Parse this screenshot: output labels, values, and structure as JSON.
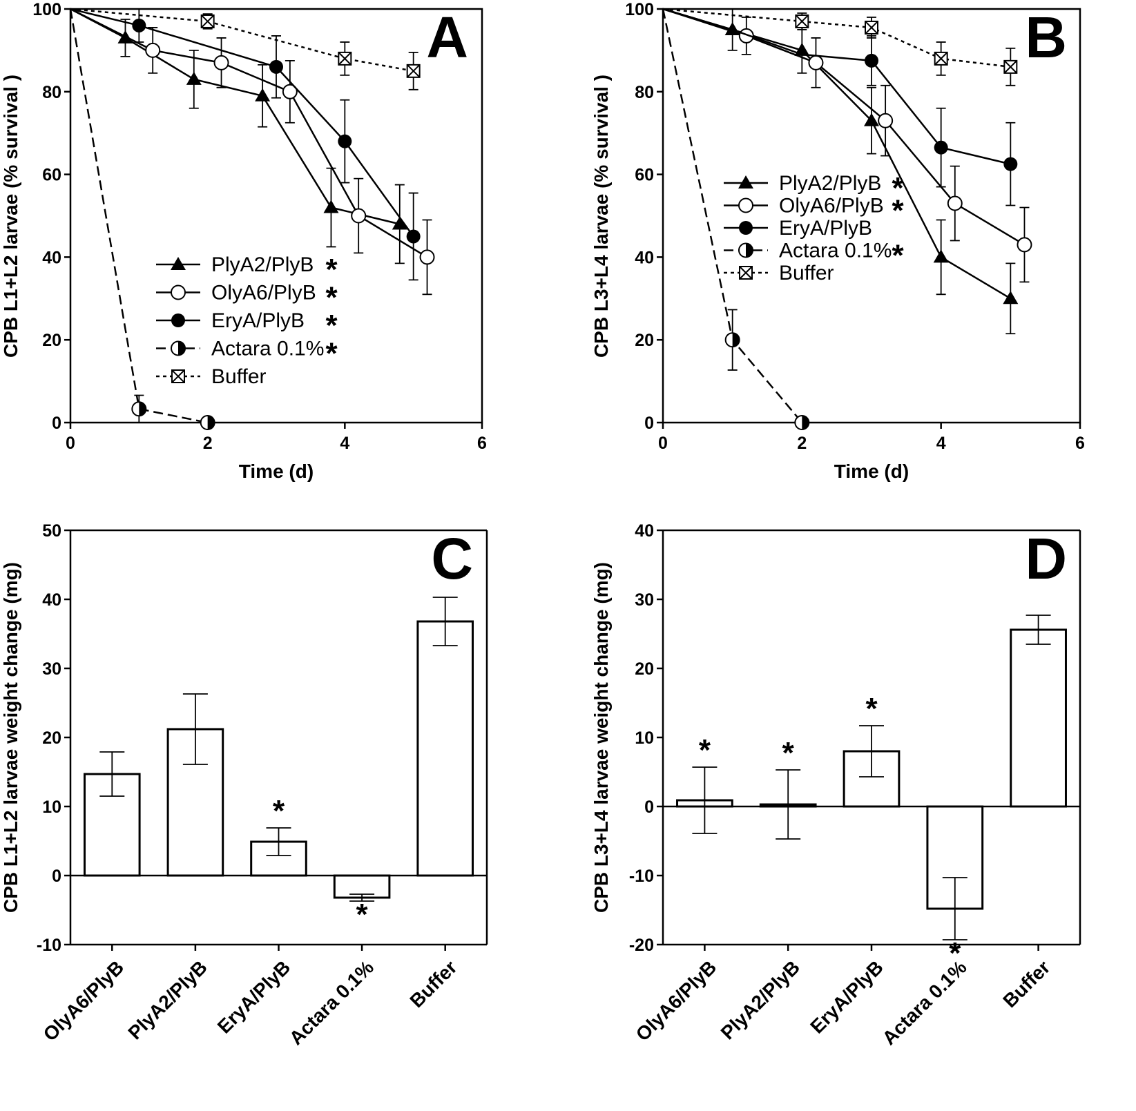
{
  "colors": {
    "ink": "#000000",
    "paper": "#ffffff"
  },
  "chart_data": [
    {
      "id": "A",
      "type": "line",
      "letter": "A",
      "xlabel": "Time (d)",
      "ylabel": "CPB L1+L2 larvae (% survival )",
      "xlim": [
        0,
        6
      ],
      "ylim": [
        0,
        100
      ],
      "xticks": [
        "0",
        "2",
        "4",
        "6"
      ],
      "yticks": [
        "0",
        "20",
        "40",
        "60",
        "80",
        "100"
      ],
      "legend_position": "center-left",
      "series": [
        {
          "name": "PlyA2/PlyB",
          "star": "*",
          "marker": "triangle",
          "dash": "solid",
          "points": [
            {
              "x": 0,
              "y": 100
            },
            {
              "x": 0.8,
              "y": 93
            },
            {
              "x": 1.8,
              "y": 83
            },
            {
              "x": 2.8,
              "y": 79
            },
            {
              "x": 3.8,
              "y": 52
            },
            {
              "x": 4.8,
              "y": 48
            }
          ],
          "err": [
            0,
            4.5,
            7,
            7.5,
            9.5,
            9.5
          ]
        },
        {
          "name": "OlyA6/PlyB",
          "star": "*",
          "marker": "circle-open",
          "dash": "solid",
          "points": [
            {
              "x": 0,
              "y": 100
            },
            {
              "x": 1.2,
              "y": 90
            },
            {
              "x": 2.2,
              "y": 87
            },
            {
              "x": 3.2,
              "y": 80
            },
            {
              "x": 4.2,
              "y": 50
            },
            {
              "x": 5.2,
              "y": 40
            }
          ],
          "err": [
            0,
            5.5,
            6,
            7.5,
            9,
            9
          ]
        },
        {
          "name": "EryA/PlyB",
          "star": "*",
          "marker": "circle-filled",
          "dash": "solid",
          "points": [
            {
              "x": 0,
              "y": 100
            },
            {
              "x": 1,
              "y": 96
            },
            {
              "x": 3,
              "y": 86
            },
            {
              "x": 4,
              "y": 68
            },
            {
              "x": 5,
              "y": 45
            }
          ],
          "err": [
            0,
            4,
            7.5,
            10,
            10.5
          ]
        },
        {
          "name": "Actara 0.1%",
          "star": "*",
          "marker": "circle-half",
          "dash": "long",
          "points": [
            {
              "x": 0,
              "y": 100
            },
            {
              "x": 1,
              "y": 3.3
            },
            {
              "x": 2,
              "y": 0
            }
          ],
          "err": [
            0,
            3.3,
            0
          ]
        },
        {
          "name": "Buffer",
          "star": "",
          "marker": "square-x",
          "dash": "short",
          "points": [
            {
              "x": 0,
              "y": 100
            },
            {
              "x": 2,
              "y": 97
            },
            {
              "x": 4,
              "y": 88
            },
            {
              "x": 5,
              "y": 85
            }
          ],
          "err": [
            0,
            1.8,
            4,
            4.5
          ]
        }
      ]
    },
    {
      "id": "B",
      "type": "line",
      "letter": "B",
      "xlabel": "Time (d)",
      "ylabel": "CPB L3+L4 larvae (% survival )",
      "xlim": [
        0,
        6
      ],
      "ylim": [
        0,
        100
      ],
      "xticks": [
        "0",
        "2",
        "4",
        "6"
      ],
      "yticks": [
        "0",
        "20",
        "40",
        "60",
        "80",
        "100"
      ],
      "legend_position": "center-left",
      "series": [
        {
          "name": "PlyA2/PlyB",
          "star": "*",
          "marker": "triangle",
          "dash": "solid",
          "points": [
            {
              "x": 0,
              "y": 100
            },
            {
              "x": 1,
              "y": 95
            },
            {
              "x": 2,
              "y": 90
            },
            {
              "x": 3,
              "y": 73
            },
            {
              "x": 4,
              "y": 40
            },
            {
              "x": 5,
              "y": 30
            }
          ],
          "err": [
            0,
            5,
            5.5,
            8,
            9,
            8.5
          ]
        },
        {
          "name": "OlyA6/PlyB",
          "star": "*",
          "marker": "circle-open",
          "dash": "solid",
          "points": [
            {
              "x": 0,
              "y": 100
            },
            {
              "x": 1.2,
              "y": 93.5
            },
            {
              "x": 2.2,
              "y": 87
            },
            {
              "x": 3.2,
              "y": 73
            },
            {
              "x": 4.2,
              "y": 53
            },
            {
              "x": 5.2,
              "y": 43
            }
          ],
          "err": [
            0,
            4.5,
            6,
            8.5,
            9,
            9
          ]
        },
        {
          "name": "EryA/PlyB",
          "star": "",
          "marker": "circle-filled",
          "dash": "solid",
          "points": [
            {
              "x": 0,
              "y": 100
            },
            {
              "x": 1,
              "y": 95
            },
            {
              "x": 2,
              "y": 89
            },
            {
              "x": 3,
              "y": 87.5
            },
            {
              "x": 4,
              "y": 66.5
            },
            {
              "x": 5,
              "y": 62.5
            }
          ],
          "err": [
            0,
            0,
            0,
            6,
            9.5,
            10
          ]
        },
        {
          "name": "Actara 0.1%",
          "star": "*",
          "marker": "circle-half",
          "dash": "long",
          "points": [
            {
              "x": 0,
              "y": 100
            },
            {
              "x": 1,
              "y": 20
            },
            {
              "x": 2,
              "y": 0
            }
          ],
          "err": [
            0,
            7.3,
            0
          ]
        },
        {
          "name": "Buffer",
          "star": "",
          "marker": "square-x",
          "dash": "short",
          "points": [
            {
              "x": 0,
              "y": 100
            },
            {
              "x": 2,
              "y": 97
            },
            {
              "x": 3,
              "y": 95.5
            },
            {
              "x": 4,
              "y": 88
            },
            {
              "x": 5,
              "y": 86
            }
          ],
          "err": [
            0,
            2,
            2.5,
            4,
            4.5
          ]
        }
      ]
    },
    {
      "id": "C",
      "type": "bar",
      "letter": "C",
      "xlabel": "",
      "ylabel": "CPB L1+L2 larvae weight change (mg)",
      "ylim": [
        -10,
        50
      ],
      "yticks": [
        "-10",
        "0",
        "10",
        "20",
        "30",
        "40",
        "50"
      ],
      "categories": [
        "OlyA6/PlyB",
        "PlyA2/PlyB",
        "EryA/PlyB",
        "Actara 0.1%",
        "Buffer"
      ],
      "values": [
        14.7,
        21.2,
        4.9,
        -3.2,
        36.8
      ],
      "errors": [
        3.2,
        5.1,
        2.0,
        0.5,
        3.5
      ],
      "stars": [
        "",
        "",
        "*",
        "*",
        ""
      ]
    },
    {
      "id": "D",
      "type": "bar",
      "letter": "D",
      "xlabel": "",
      "ylabel": "CPB L3+L4 larvae weight change (mg)",
      "ylim": [
        -20,
        40
      ],
      "yticks": [
        "-20",
        "-10",
        "0",
        "10",
        "20",
        "30",
        "40"
      ],
      "categories": [
        "OlyA6/PlyB",
        "PlyA2/PlyB",
        "EryA/PlyB",
        "Actara 0.1%",
        "Buffer"
      ],
      "values": [
        0.9,
        0.3,
        8.0,
        -14.8,
        25.6
      ],
      "errors": [
        4.8,
        5.0,
        3.7,
        4.5,
        2.1
      ],
      "stars": [
        "*",
        "*",
        "*",
        "*",
        ""
      ]
    }
  ]
}
